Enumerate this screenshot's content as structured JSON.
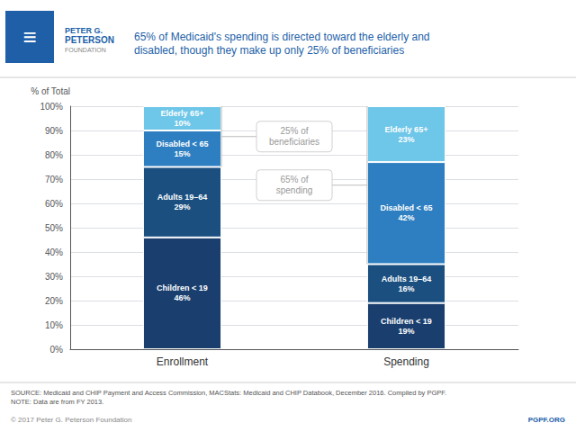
{
  "chart_data": {
    "type": "bar",
    "stacked": true,
    "title": "65% of Medicaid's spending is directed toward the elderly and\ndisabled, though they make up only 25% of beneficiaries",
    "ylabel": "% of Total",
    "categories": [
      "Enrollment",
      "Spending"
    ],
    "series": [
      {
        "color": "#1a3f6f",
        "values": [
          46,
          19
        ],
        "value_labels": [
          "Children < 19\n46%",
          "Children < 19\n19%"
        ]
      },
      {
        "color": "#1a4f80",
        "values": [
          29,
          16
        ],
        "value_labels": [
          "Adults 19–64\n29%",
          "Adults 19–64\n16%"
        ]
      },
      {
        "color": "#2e7fc1",
        "values": [
          15,
          42
        ],
        "value_labels": [
          "Disabled < 65\n15%",
          "Disabled < 65\n42%"
        ]
      },
      {
        "color": "#6ec6e8",
        "values": [
          10,
          23
        ],
        "value_labels": [
          "Elderly 65+\n10%",
          "Elderly 65+\n23%"
        ]
      }
    ],
    "data_labels": true,
    "ylim": [
      0,
      100
    ],
    "yticks": [
      {
        "value": 0,
        "label": "0%"
      },
      {
        "value": 10,
        "label": "10%"
      },
      {
        "value": 20,
        "label": "20%"
      },
      {
        "value": 30,
        "label": "30%"
      },
      {
        "value": 40,
        "label": "40%"
      },
      {
        "value": 50,
        "label": "50%"
      },
      {
        "value": 60,
        "label": "60%"
      },
      {
        "value": 70,
        "label": "70%"
      },
      {
        "value": 80,
        "label": "80%"
      },
      {
        "value": 90,
        "label": "90%"
      },
      {
        "value": 100,
        "label": "100%"
      }
    ],
    "grid": true,
    "annotations": [
      "25% of\nbeneficiaries",
      "65% of\nspending"
    ],
    "logo": [
      "≡",
      "PETER G.",
      "PETERSON",
      "FOUNDATION"
    ],
    "notes": [
      "SOURCE: Medicaid and CHIP Payment and Access Commission, MACStats: Medicaid and CHIP Databook, December 2016. Compiled by PGPF.\nNOTE: Data are from FY 2013.",
      "© 2017 Peter G. Peterson Foundation",
      "PGPF.ORG"
    ]
  }
}
